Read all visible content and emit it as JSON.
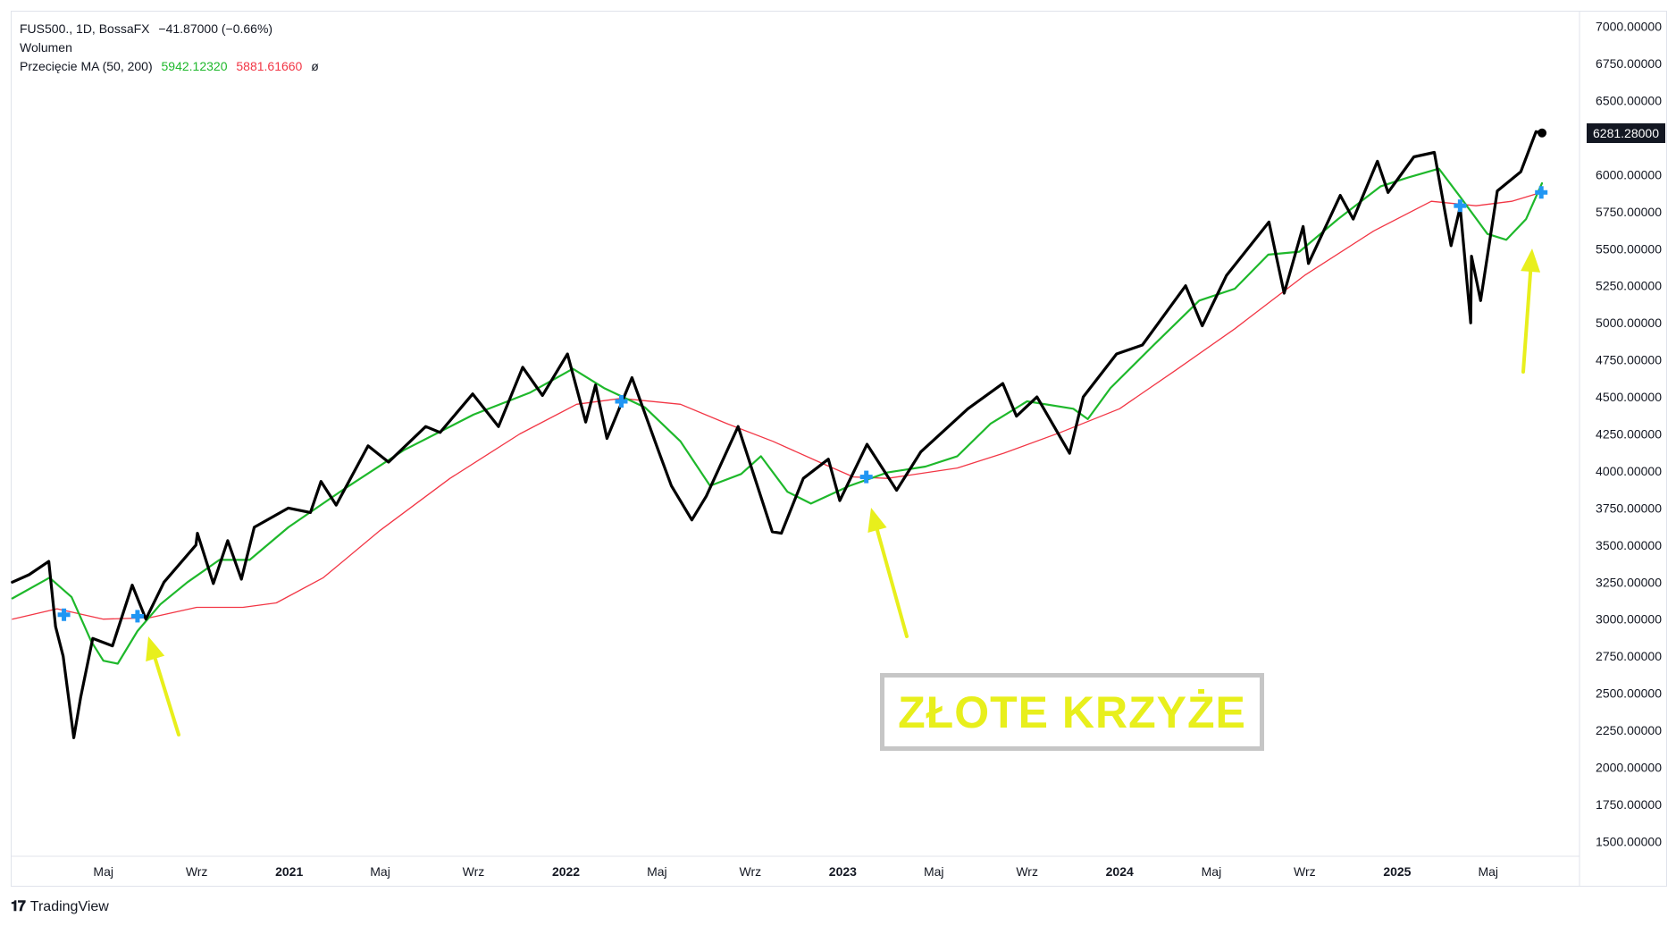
{
  "legend": {
    "symbol": "FUS500., 1D, BossaFX",
    "change": "−41.87000 (−0.66%)",
    "volume_label": "Wolumen",
    "ma_label": "Przecięcie MA (50, 200)",
    "ma50_value": "5942.12320",
    "ma200_value": "5881.61660",
    "ma_symbol": "ø"
  },
  "last_price_label": "6281.28000",
  "annotation": {
    "text": "ZŁOTE KRZYŻE"
  },
  "footer": {
    "brand": "TradingView",
    "logo_icon": "tradingview-logo-icon"
  },
  "colors": {
    "price": "#000000",
    "ma50": "#1eb82b",
    "ma200": "#f23645",
    "cross_marker": "#2196f3",
    "arrow": "#e8ef1c",
    "annotation_border": "#c6c6c6"
  },
  "chart_data": {
    "type": "line",
    "y_axis": {
      "ticks": [
        1500,
        1750,
        2000,
        2250,
        2500,
        2750,
        3000,
        3250,
        3500,
        3750,
        4000,
        4250,
        4500,
        4750,
        5000,
        5250,
        5500,
        5750,
        6000,
        6250,
        6500,
        6750,
        7000
      ],
      "tick_labels": [
        "1500.00000",
        "1750.00000",
        "2000.00000",
        "2250.00000",
        "2500.00000",
        "2750.00000",
        "3000.00000",
        "3250.00000",
        "3500.00000",
        "3750.00000",
        "4000.00000",
        "4250.00000",
        "4500.00000",
        "4750.00000",
        "5000.00000",
        "5250.00000",
        "5500.00000",
        "5750.00000",
        "6000.00000",
        "6250.00000",
        "6500.00000",
        "6750.00000",
        "7000.00000"
      ],
      "range": [
        1400,
        7100
      ]
    },
    "x_axis": {
      "range": [
        "2020-01-01",
        "2025-08-20"
      ],
      "ticks": [
        {
          "date": "2020-05-01",
          "label": "Maj",
          "bold": false
        },
        {
          "date": "2020-09-01",
          "label": "Wrz",
          "bold": false
        },
        {
          "date": "2021-01-01",
          "label": "2021",
          "bold": true
        },
        {
          "date": "2021-05-01",
          "label": "Maj",
          "bold": false
        },
        {
          "date": "2021-09-01",
          "label": "Wrz",
          "bold": false
        },
        {
          "date": "2022-01-01",
          "label": "2022",
          "bold": true
        },
        {
          "date": "2022-05-01",
          "label": "Maj",
          "bold": false
        },
        {
          "date": "2022-09-01",
          "label": "Wrz",
          "bold": false
        },
        {
          "date": "2023-01-01",
          "label": "2023",
          "bold": true
        },
        {
          "date": "2023-05-01",
          "label": "Maj",
          "bold": false
        },
        {
          "date": "2023-09-01",
          "label": "Wrz",
          "bold": false
        },
        {
          "date": "2024-01-01",
          "label": "2024",
          "bold": true
        },
        {
          "date": "2024-05-01",
          "label": "Maj",
          "bold": false
        },
        {
          "date": "2024-09-01",
          "label": "Wrz",
          "bold": false
        },
        {
          "date": "2025-01-01",
          "label": "2025",
          "bold": true
        },
        {
          "date": "2025-05-01",
          "label": "Maj",
          "bold": false
        }
      ]
    },
    "series": [
      {
        "name": "FUS500.",
        "role": "price",
        "points": [
          [
            "2020-01-02",
            3250
          ],
          [
            "2020-01-24",
            3300
          ],
          [
            "2020-02-19",
            3390
          ],
          [
            "2020-02-28",
            2950
          ],
          [
            "2020-03-09",
            2750
          ],
          [
            "2020-03-23",
            2200
          ],
          [
            "2020-04-01",
            2470
          ],
          [
            "2020-04-17",
            2870
          ],
          [
            "2020-05-13",
            2820
          ],
          [
            "2020-06-08",
            3230
          ],
          [
            "2020-06-26",
            3000
          ],
          [
            "2020-07-20",
            3250
          ],
          [
            "2020-08-31",
            3500
          ],
          [
            "2020-09-02",
            3580
          ],
          [
            "2020-09-23",
            3240
          ],
          [
            "2020-10-12",
            3530
          ],
          [
            "2020-10-30",
            3270
          ],
          [
            "2020-11-16",
            3620
          ],
          [
            "2020-12-31",
            3750
          ],
          [
            "2021-01-29",
            3720
          ],
          [
            "2021-02-12",
            3930
          ],
          [
            "2021-03-04",
            3770
          ],
          [
            "2021-04-15",
            4170
          ],
          [
            "2021-05-12",
            4060
          ],
          [
            "2021-06-30",
            4300
          ],
          [
            "2021-07-19",
            4260
          ],
          [
            "2021-08-31",
            4520
          ],
          [
            "2021-10-04",
            4300
          ],
          [
            "2021-11-05",
            4700
          ],
          [
            "2021-12-01",
            4510
          ],
          [
            "2022-01-03",
            4790
          ],
          [
            "2022-01-27",
            4330
          ],
          [
            "2022-02-09",
            4580
          ],
          [
            "2022-02-24",
            4220
          ],
          [
            "2022-03-29",
            4630
          ],
          [
            "2022-05-02",
            4150
          ],
          [
            "2022-05-20",
            3900
          ],
          [
            "2022-06-16",
            3670
          ],
          [
            "2022-07-05",
            3830
          ],
          [
            "2022-08-16",
            4300
          ],
          [
            "2022-09-30",
            3590
          ],
          [
            "2022-10-12",
            3580
          ],
          [
            "2022-11-10",
            3950
          ],
          [
            "2022-12-13",
            4080
          ],
          [
            "2022-12-28",
            3800
          ],
          [
            "2023-02-02",
            4180
          ],
          [
            "2023-03-13",
            3870
          ],
          [
            "2023-04-14",
            4130
          ],
          [
            "2023-06-15",
            4420
          ],
          [
            "2023-07-31",
            4590
          ],
          [
            "2023-08-18",
            4370
          ],
          [
            "2023-09-14",
            4500
          ],
          [
            "2023-10-27",
            4120
          ],
          [
            "2023-11-14",
            4500
          ],
          [
            "2023-12-28",
            4790
          ],
          [
            "2024-01-31",
            4850
          ],
          [
            "2024-03-28",
            5250
          ],
          [
            "2024-04-19",
            4980
          ],
          [
            "2024-05-21",
            5320
          ],
          [
            "2024-07-16",
            5680
          ],
          [
            "2024-08-05",
            5200
          ],
          [
            "2024-08-30",
            5650
          ],
          [
            "2024-09-06",
            5400
          ],
          [
            "2024-10-18",
            5860
          ],
          [
            "2024-11-04",
            5700
          ],
          [
            "2024-12-06",
            6090
          ],
          [
            "2024-12-20",
            5880
          ],
          [
            "2025-01-23",
            6120
          ],
          [
            "2025-02-19",
            6150
          ],
          [
            "2025-03-13",
            5520
          ],
          [
            "2025-03-25",
            5780
          ],
          [
            "2025-04-08",
            5000
          ],
          [
            "2025-04-09",
            5450
          ],
          [
            "2025-04-21",
            5150
          ],
          [
            "2025-05-13",
            5890
          ],
          [
            "2025-06-13",
            6020
          ],
          [
            "2025-07-03",
            6290
          ],
          [
            "2025-07-11",
            6281.28
          ]
        ]
      },
      {
        "name": "MA 50",
        "role": "ma50",
        "points": [
          [
            "2020-01-02",
            3140
          ],
          [
            "2020-02-20",
            3280
          ],
          [
            "2020-03-20",
            3150
          ],
          [
            "2020-04-15",
            2850
          ],
          [
            "2020-05-01",
            2720
          ],
          [
            "2020-05-20",
            2700
          ],
          [
            "2020-06-15",
            2920
          ],
          [
            "2020-07-15",
            3100
          ],
          [
            "2020-08-20",
            3250
          ],
          [
            "2020-10-01",
            3400
          ],
          [
            "2020-11-10",
            3400
          ],
          [
            "2020-12-31",
            3620
          ],
          [
            "2021-03-15",
            3880
          ],
          [
            "2021-06-01",
            4140
          ],
          [
            "2021-09-01",
            4380
          ],
          [
            "2021-11-15",
            4530
          ],
          [
            "2022-01-10",
            4690
          ],
          [
            "2022-02-20",
            4560
          ],
          [
            "2022-04-15",
            4430
          ],
          [
            "2022-06-01",
            4200
          ],
          [
            "2022-07-10",
            3900
          ],
          [
            "2022-08-20",
            3980
          ],
          [
            "2022-09-15",
            4100
          ],
          [
            "2022-10-20",
            3860
          ],
          [
            "2022-11-20",
            3780
          ],
          [
            "2023-01-10",
            3900
          ],
          [
            "2023-03-01",
            3990
          ],
          [
            "2023-04-20",
            4030
          ],
          [
            "2023-06-01",
            4100
          ],
          [
            "2023-07-15",
            4320
          ],
          [
            "2023-09-01",
            4470
          ],
          [
            "2023-11-01",
            4420
          ],
          [
            "2023-11-20",
            4350
          ],
          [
            "2023-12-20",
            4560
          ],
          [
            "2024-02-15",
            4850
          ],
          [
            "2024-04-15",
            5150
          ],
          [
            "2024-06-01",
            5230
          ],
          [
            "2024-07-15",
            5460
          ],
          [
            "2024-08-25",
            5480
          ],
          [
            "2024-10-15",
            5700
          ],
          [
            "2024-12-10",
            5920
          ],
          [
            "2025-01-15",
            5980
          ],
          [
            "2025-02-25",
            6040
          ],
          [
            "2025-03-25",
            5850
          ],
          [
            "2025-04-30",
            5600
          ],
          [
            "2025-05-25",
            5560
          ],
          [
            "2025-06-20",
            5700
          ],
          [
            "2025-07-11",
            5942.12
          ]
        ]
      },
      {
        "name": "MA 200",
        "role": "ma200",
        "points": [
          [
            "2020-01-02",
            3000
          ],
          [
            "2020-03-01",
            3070
          ],
          [
            "2020-05-01",
            3000
          ],
          [
            "2020-07-01",
            3010
          ],
          [
            "2020-09-01",
            3080
          ],
          [
            "2020-11-01",
            3080
          ],
          [
            "2020-12-15",
            3110
          ],
          [
            "2021-02-15",
            3280
          ],
          [
            "2021-05-01",
            3600
          ],
          [
            "2021-08-01",
            3950
          ],
          [
            "2021-11-01",
            4250
          ],
          [
            "2022-01-15",
            4450
          ],
          [
            "2022-03-15",
            4490
          ],
          [
            "2022-06-01",
            4450
          ],
          [
            "2022-08-01",
            4320
          ],
          [
            "2022-10-01",
            4200
          ],
          [
            "2022-12-01",
            4060
          ],
          [
            "2023-01-15",
            3960
          ],
          [
            "2023-03-01",
            3950
          ],
          [
            "2023-06-01",
            4020
          ],
          [
            "2023-08-01",
            4120
          ],
          [
            "2023-10-15",
            4260
          ],
          [
            "2024-01-01",
            4420
          ],
          [
            "2024-03-15",
            4680
          ],
          [
            "2024-06-01",
            4960
          ],
          [
            "2024-09-01",
            5320
          ],
          [
            "2024-12-01",
            5620
          ],
          [
            "2025-02-15",
            5820
          ],
          [
            "2025-04-15",
            5790
          ],
          [
            "2025-06-01",
            5820
          ],
          [
            "2025-07-11",
            5881.62
          ]
        ]
      }
    ],
    "markers": {
      "type": "golden_cross",
      "points": [
        [
          "2020-03-10",
          3030
        ],
        [
          "2020-06-15",
          3020
        ],
        [
          "2022-03-15",
          4470
        ],
        [
          "2023-02-01",
          3960
        ],
        [
          "2025-03-25",
          5790
        ],
        [
          "2025-07-10",
          5880
        ]
      ]
    }
  }
}
